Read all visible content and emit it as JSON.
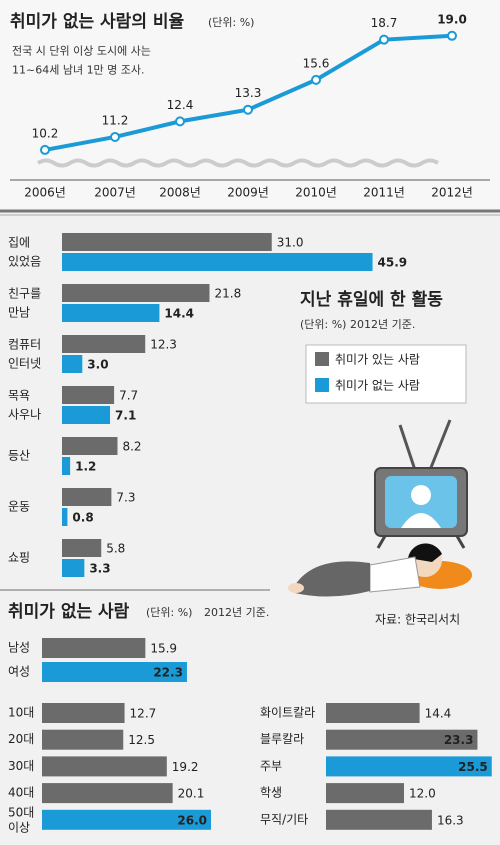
{
  "source": "자료: 한국리서치",
  "chart_data": [
    {
      "type": "line",
      "title": "취미가 없는 사람의 비율",
      "unit": "(단위: %)",
      "subtitle": "전국 시 단위 이상 도시에 사는\n11~64세 남녀 1만 명 조사.",
      "x": [
        "2006년",
        "2007년",
        "2008년",
        "2009년",
        "2010년",
        "2011년",
        "2012년"
      ],
      "values": [
        10.2,
        11.2,
        12.4,
        13.3,
        15.6,
        18.7,
        19.0
      ],
      "value_labels": [
        "10.2",
        "11.2",
        "12.4",
        "13.3",
        "15.6",
        "18.7",
        "19.0"
      ],
      "color": "#1a9ad6",
      "ylim": [
        9,
        19.6
      ]
    },
    {
      "type": "grouped_hbar",
      "title": "지난 휴일에 한 활동",
      "subtitle": "(단위: %)  2012년 기준.",
      "categories": [
        "집에\n있었음",
        "친구를\n만남",
        "컴퓨터\n인터넷",
        "목욕\n사우나",
        "등산",
        "운동",
        "쇼핑"
      ],
      "series": [
        {
          "name": "취미가 있는 사람",
          "color": "#6b6b6b",
          "values": [
            31.0,
            21.8,
            12.3,
            7.7,
            8.2,
            7.3,
            5.8
          ],
          "value_labels": [
            "31.0",
            "21.8",
            "12.3",
            "7.7",
            "8.2",
            "7.3",
            "5.8"
          ]
        },
        {
          "name": "취미가 없는 사람",
          "color": "#1a9ad6",
          "values": [
            45.9,
            14.4,
            3.0,
            7.1,
            1.2,
            0.8,
            3.3
          ],
          "value_labels": [
            "45.9",
            "14.4",
            "3.0",
            "7.1",
            "1.2",
            "0.8",
            "3.3"
          ]
        }
      ],
      "xlim": [
        0,
        64
      ],
      "legend": "right"
    },
    {
      "type": "hbar",
      "title": "취미가 없는 사람",
      "unit": "(단위: %)",
      "subtitle": "2012년 기준.",
      "categories": [
        "남성",
        "여성"
      ],
      "values": [
        15.9,
        22.3
      ],
      "value_labels": [
        "15.9",
        "22.3"
      ],
      "colors": [
        "#6b6b6b",
        "#1a9ad6"
      ],
      "xlim": [
        0,
        30
      ]
    },
    {
      "type": "hbar",
      "categories": [
        "10대",
        "20대",
        "30대",
        "40대",
        "50대\n이상"
      ],
      "values": [
        12.7,
        12.5,
        19.2,
        20.1,
        26.0
      ],
      "value_labels": [
        "12.7",
        "12.5",
        "19.2",
        "20.1",
        "26.0"
      ],
      "colors": [
        "#6b6b6b",
        "#6b6b6b",
        "#6b6b6b",
        "#6b6b6b",
        "#1a9ad6"
      ],
      "xlim": [
        0,
        30
      ]
    },
    {
      "type": "hbar",
      "categories": [
        "화이트칼라",
        "블루칼라",
        "주부",
        "학생",
        "무직/기타"
      ],
      "values": [
        14.4,
        23.3,
        25.5,
        12.0,
        16.3
      ],
      "value_labels": [
        "14.4",
        "23.3",
        "25.5",
        "12.0",
        "16.3"
      ],
      "colors": [
        "#6b6b6b",
        "#6b6b6b",
        "#1a9ad6",
        "#6b6b6b",
        "#6b6b6b"
      ],
      "xlim": [
        0,
        30
      ]
    }
  ]
}
